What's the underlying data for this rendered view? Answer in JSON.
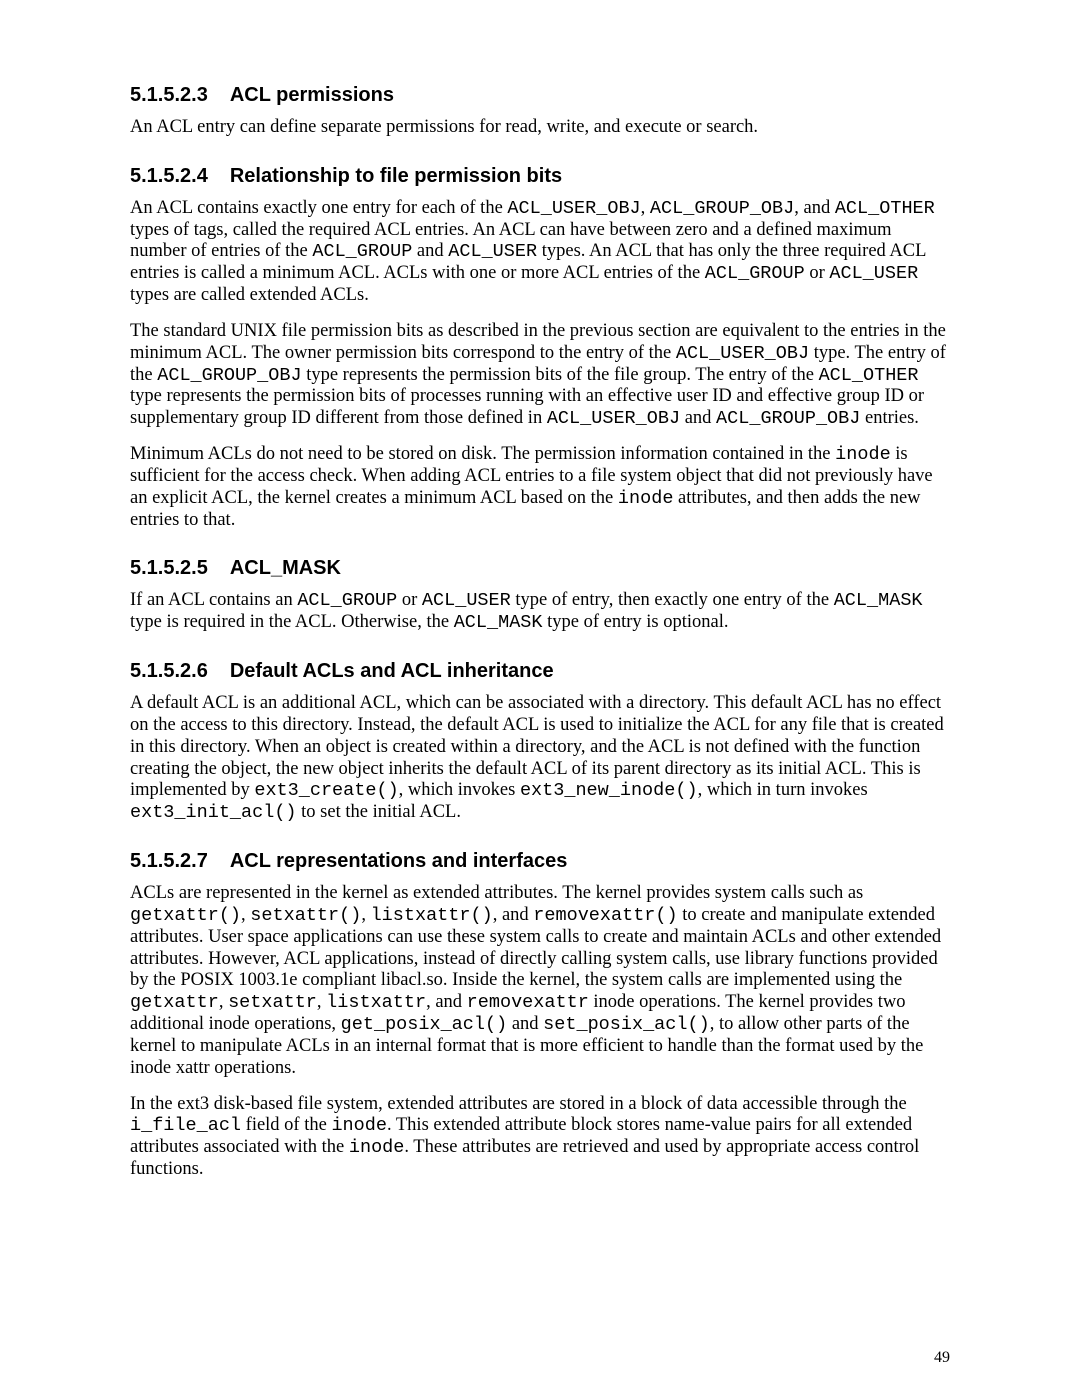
{
  "page_number": "49",
  "sections": {
    "s1": {
      "num": "5.1.5.2.3",
      "title": "ACL permissions"
    },
    "s2": {
      "num": "5.1.5.2.4",
      "title": "Relationship to file permission bits"
    },
    "s3": {
      "num": "5.1.5.2.5",
      "title": "ACL_MASK"
    },
    "s4": {
      "num": "5.1.5.2.6",
      "title": "Default ACLs and ACL inheritance"
    },
    "s5": {
      "num": "5.1.5.2.7",
      "title": "ACL representations and interfaces"
    }
  },
  "t": {
    "p1_a": "An ACL entry can define separate permissions for read, write, and execute or search.",
    "p2_a": "An ACL contains exactly one entry for each of the ",
    "p2_b": "ACL_USER_OBJ",
    "p2_c": ", ",
    "p2_d": "ACL_GROUP_OBJ",
    "p2_e": ", and ",
    "p2_f": "ACL_OTHER",
    "p2_g": " types of tags, called the required ACL entries.  An ACL can have between zero and a defined maximum number of entries of the ",
    "p2_h": "ACL_GROUP",
    "p2_i": " and ",
    "p2_j": "ACL_USER",
    "p2_k": " types.  An ACL that has only the three required ACL entries is called a minimum ACL.  ACLs with one or more ACL entries of the ",
    "p2_l": "ACL_GROUP",
    "p2_m": " or ",
    "p2_n": "ACL_USER",
    "p2_o": " types are called extended ACLs.",
    "p3_a": "The standard UNIX file permission bits as described in the previous section are equivalent to the entries in the minimum ACL.  The owner permission bits correspond to the entry of the ",
    "p3_b": "ACL_USER_OBJ",
    "p3_c": " type.  The entry of the ",
    "p3_d": "ACL_GROUP_OBJ",
    "p3_e": " type represents the permission bits of the file group.  The entry of the ",
    "p3_f": "ACL_OTHER",
    "p3_g": " type represents the permission bits of processes running with an effective user ID and effective group ID or supplementary group ID different from those defined in ",
    "p3_h": "ACL_USER_OBJ",
    "p3_i": " and ",
    "p3_j": "ACL_GROUP_OBJ",
    "p3_k": " entries.",
    "p4_a": "Minimum ACLs do not need to be stored on disk.  The permission information contained in the ",
    "p4_b": "inode",
    "p4_c": " is sufficient for the access check.  When adding ACL entries to a file system object that did not previously have an explicit ACL, the kernel creates a minimum ACL based on the ",
    "p4_d": "inode",
    "p4_e": " attributes, and then adds the new entries to that.",
    "p5_a": "If an ACL contains an ",
    "p5_b": "ACL_GROUP",
    "p5_c": " or ",
    "p5_d": "ACL_USER",
    "p5_e": " type of entry, then exactly one entry of the ",
    "p5_f": "ACL_MASK",
    "p5_g": " type is required in the ACL.  Otherwise, the ",
    "p5_h": "ACL_MASK",
    "p5_i": " type of entry is optional.",
    "p6_a": "A default ACL is an additional ACL, which can be associated with a directory.  This default ACL has no effect on the access to this directory.  Instead, the default ACL is used to initialize the ACL for any file that is created in this directory.  When an object is created within a directory, and the ACL is not defined with the function creating the object, the new object inherits the default ACL of its parent directory as its initial ACL.  This is implemented by ",
    "p6_b": "ext3_create()",
    "p6_c": ", which invokes ",
    "p6_d": "ext3_new_inode()",
    "p6_e": ", which in turn invokes ",
    "p6_f": "ext3_init_acl()",
    "p6_g": " to set the initial ACL.",
    "p7_a": "ACLs are represented in the kernel as extended attributes.  The kernel provides system calls such as ",
    "p7_b": "getxattr()",
    "p7_c": ", ",
    "p7_d": "setxattr()",
    "p7_e": ", ",
    "p7_f": "listxattr()",
    "p7_g": ", and ",
    "p7_h": "removexattr()",
    "p7_i": " to create and manipulate extended attributes.  User space applications can use these system calls to create and maintain ACLs and other extended attributes.  However, ACL applications, instead of directly calling system calls, use library functions provided by the POSIX 1003.1e compliant libacl.so.  Inside the kernel, the system calls are implemented using the ",
    "p7_j": "getxattr",
    "p7_k": ", ",
    "p7_l": "setxattr",
    "p7_m": ", ",
    "p7_n": "listxattr",
    "p7_o": ", and ",
    "p7_p": "removexattr",
    "p7_q": " inode operations.  The kernel provides two additional inode operations, ",
    "p7_r": "get_posix_acl()",
    "p7_s": "  and ",
    "p7_t": "set_posix_acl()",
    "p7_u": ", to allow other parts of the kernel to manipulate ACLs in an internal format that is more efficient to handle than the format used by the inode xattr operations.",
    "p8_a": "In the ext3 disk-based file system, extended attributes are stored in a block of data accessible through the ",
    "p8_b": "i_file_acl",
    "p8_c": " field of the ",
    "p8_d": "inode",
    "p8_e": ".  This extended attribute block stores name-value pairs for all extended attributes associated with the ",
    "p8_f": "inode",
    "p8_g": ".  These attributes are retrieved and used by appropriate access control functions."
  }
}
